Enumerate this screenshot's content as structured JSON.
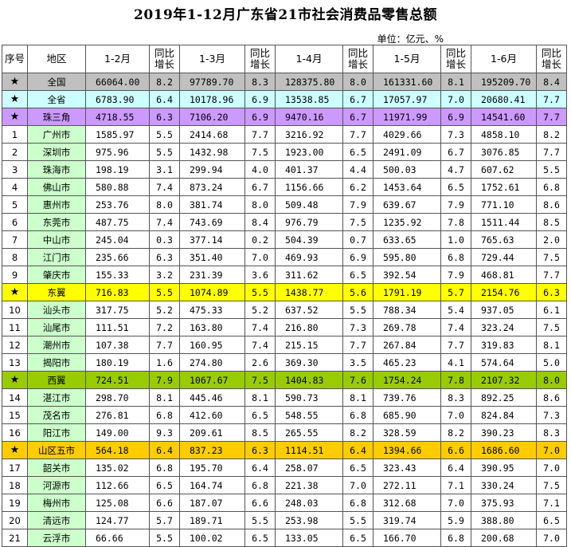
{
  "title": "2019年1-12月广东省21市社会消费品零售总额",
  "unit": "单位：亿元、%",
  "headers": [
    "序号",
    "地区",
    "1-2月",
    "同比增长",
    "1-3月",
    "同比增长",
    "1-4月",
    "同比增长",
    "1-5月",
    "同比增长",
    "1-6月",
    "同比增长"
  ],
  "rows": [
    {
      "idx": "★",
      "name": "全国",
      "type": "nat",
      "v": [
        "66064.00",
        "8.2",
        "97789.70",
        "8.3",
        "128375.80",
        "8.0",
        "161331.60",
        "8.1",
        "195209.70",
        "8.4"
      ]
    },
    {
      "idx": "★",
      "name": "全省",
      "type": "prov",
      "v": [
        "6783.90",
        "6.4",
        "10178.96",
        "6.9",
        "13538.85",
        "6.7",
        "17057.97",
        "7.0",
        "20680.41",
        "7.7"
      ]
    },
    {
      "idx": "★",
      "name": "珠三角",
      "type": "prd",
      "v": [
        "4718.55",
        "6.3",
        "7106.20",
        "6.9",
        "9470.16",
        "6.7",
        "11971.99",
        "6.9",
        "14541.60",
        "7.7"
      ]
    },
    {
      "idx": "1",
      "name": "广州市",
      "type": "city",
      "v": [
        "1585.97",
        "5.5",
        "2414.68",
        "7.7",
        "3216.92",
        "7.7",
        "4029.66",
        "7.3",
        "4858.10",
        "8.2"
      ]
    },
    {
      "idx": "2",
      "name": "深圳市",
      "type": "city",
      "v": [
        "975.96",
        "5.5",
        "1432.98",
        "7.5",
        "1923.00",
        "6.5",
        "2491.09",
        "6.7",
        "3076.85",
        "7.7"
      ]
    },
    {
      "idx": "3",
      "name": "珠海市",
      "type": "city",
      "v": [
        "198.19",
        "3.1",
        "299.94",
        "4.0",
        "401.37",
        "4.4",
        "500.03",
        "4.7",
        "607.62",
        "5.5"
      ]
    },
    {
      "idx": "4",
      "name": "佛山市",
      "type": "city",
      "v": [
        "580.88",
        "7.4",
        "873.24",
        "6.7",
        "1156.66",
        "6.2",
        "1453.64",
        "6.5",
        "1752.61",
        "6.8"
      ]
    },
    {
      "idx": "5",
      "name": "惠州市",
      "type": "city",
      "v": [
        "253.76",
        "8.0",
        "381.74",
        "8.0",
        "509.48",
        "7.9",
        "639.67",
        "7.9",
        "771.10",
        "8.6"
      ]
    },
    {
      "idx": "6",
      "name": "东莞市",
      "type": "city",
      "v": [
        "487.75",
        "7.4",
        "743.69",
        "8.4",
        "976.79",
        "7.5",
        "1235.92",
        "7.8",
        "1511.44",
        "8.5"
      ]
    },
    {
      "idx": "7",
      "name": "中山市",
      "type": "city",
      "v": [
        "245.04",
        "0.3",
        "377.14",
        "0.2",
        "504.39",
        "0.7",
        "633.65",
        "1.0",
        "765.63",
        "2.0"
      ]
    },
    {
      "idx": "8",
      "name": "江门市",
      "type": "city",
      "v": [
        "235.66",
        "6.3",
        "351.40",
        "7.0",
        "469.93",
        "6.9",
        "595.80",
        "6.8",
        "729.44",
        "7.5"
      ]
    },
    {
      "idx": "9",
      "name": "肇庆市",
      "type": "city",
      "v": [
        "155.33",
        "3.2",
        "231.39",
        "3.6",
        "311.62",
        "6.5",
        "392.54",
        "7.9",
        "468.81",
        "7.7"
      ]
    },
    {
      "idx": "★",
      "name": "东翼",
      "type": "east",
      "v": [
        "716.83",
        "5.5",
        "1074.89",
        "5.5",
        "1438.77",
        "5.6",
        "1791.19",
        "5.7",
        "2154.76",
        "6.3"
      ]
    },
    {
      "idx": "10",
      "name": "汕头市",
      "type": "city",
      "v": [
        "317.75",
        "5.2",
        "475.33",
        "5.2",
        "637.52",
        "5.5",
        "788.34",
        "5.4",
        "937.05",
        "6.1"
      ]
    },
    {
      "idx": "11",
      "name": "汕尾市",
      "type": "city",
      "v": [
        "111.51",
        "7.2",
        "163.80",
        "7.4",
        "216.80",
        "7.3",
        "269.78",
        "7.4",
        "323.24",
        "7.5"
      ]
    },
    {
      "idx": "12",
      "name": "潮州市",
      "type": "city",
      "v": [
        "107.38",
        "7.7",
        "160.95",
        "7.4",
        "215.15",
        "7.7",
        "267.84",
        "7.7",
        "319.83",
        "8.1"
      ]
    },
    {
      "idx": "13",
      "name": "揭阳市",
      "type": "city",
      "v": [
        "180.19",
        "1.6",
        "274.80",
        "2.6",
        "369.30",
        "3.5",
        "465.23",
        "4.1",
        "574.64",
        "5.0"
      ]
    },
    {
      "idx": "★",
      "name": "西翼",
      "type": "west",
      "v": [
        "724.51",
        "7.9",
        "1067.67",
        "7.5",
        "1404.83",
        "7.6",
        "1754.24",
        "7.8",
        "2107.32",
        "8.0"
      ]
    },
    {
      "idx": "14",
      "name": "湛江市",
      "type": "city",
      "v": [
        "298.70",
        "8.1",
        "445.46",
        "8.1",
        "590.73",
        "8.1",
        "739.76",
        "8.3",
        "892.25",
        "8.6"
      ]
    },
    {
      "idx": "15",
      "name": "茂名市",
      "type": "city",
      "v": [
        "276.81",
        "6.8",
        "412.60",
        "6.5",
        "548.55",
        "6.8",
        "685.90",
        "7.0",
        "824.84",
        "7.3"
      ]
    },
    {
      "idx": "16",
      "name": "阳江市",
      "type": "city",
      "v": [
        "149.00",
        "9.3",
        "209.61",
        "8.5",
        "265.55",
        "8.2",
        "328.59",
        "8.2",
        "390.23",
        "8.3"
      ]
    },
    {
      "idx": "★",
      "name": "山区五市",
      "type": "mtn",
      "v": [
        "564.18",
        "6.4",
        "837.23",
        "6.3",
        "1114.51",
        "6.4",
        "1394.66",
        "6.6",
        "1686.60",
        "7.0"
      ]
    },
    {
      "idx": "17",
      "name": "韶关市",
      "type": "city",
      "v": [
        "135.02",
        "6.8",
        "195.70",
        "6.4",
        "258.07",
        "6.5",
        "323.43",
        "6.4",
        "390.95",
        "7.0"
      ]
    },
    {
      "idx": "18",
      "name": "河源市",
      "type": "city",
      "v": [
        "112.66",
        "6.5",
        "164.74",
        "6.8",
        "221.38",
        "7.0",
        "272.11",
        "7.1",
        "330.24",
        "7.5"
      ]
    },
    {
      "idx": "19",
      "name": "梅州市",
      "type": "city",
      "v": [
        "125.08",
        "6.6",
        "187.07",
        "6.6",
        "248.03",
        "6.8",
        "312.68",
        "7.0",
        "375.93",
        "7.1"
      ]
    },
    {
      "idx": "20",
      "name": "清远市",
      "type": "city",
      "v": [
        "124.77",
        "5.7",
        "189.71",
        "5.5",
        "253.98",
        "5.5",
        "319.74",
        "5.9",
        "388.80",
        "6.5"
      ]
    },
    {
      "idx": "21",
      "name": "云浮市",
      "type": "city",
      "v": [
        "66.66",
        "5.5",
        "100.02",
        "6.5",
        "133.05",
        "6.5",
        "166.70",
        "6.8",
        "200.68",
        "7.0"
      ]
    }
  ]
}
